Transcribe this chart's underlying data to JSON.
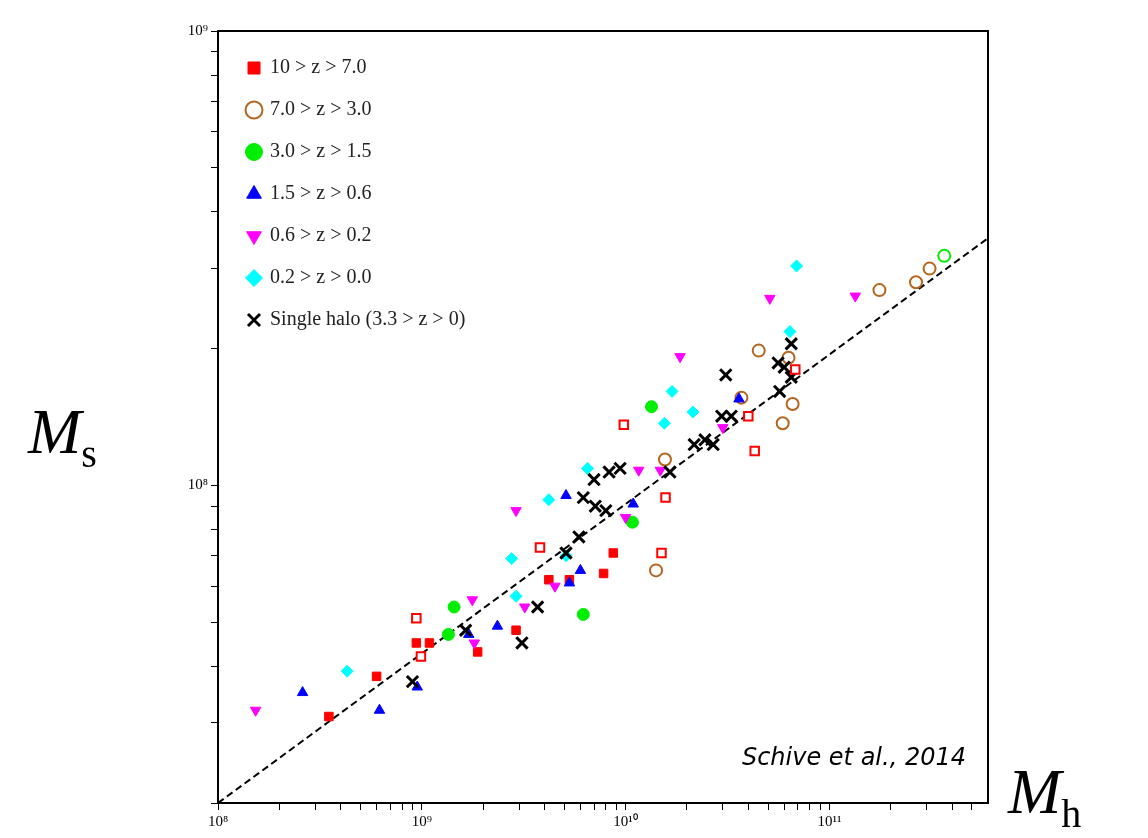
{
  "chart_data": {
    "type": "scatter",
    "xlabel": "M$_{h}$",
    "ylabel": "M$_{s}$",
    "log": "xy",
    "legend": "top left",
    "xlim": [
      100000000,
      600000000000
    ],
    "ylim": [
      20000000,
      1000000000
    ],
    "xticks": [
      {
        "value": 100000000,
        "label": "10⁸"
      },
      {
        "value": 200000000,
        "label": null
      },
      {
        "value": 300000000,
        "label": null
      },
      {
        "value": 400000000,
        "label": null
      },
      {
        "value": 500000000,
        "label": null
      },
      {
        "value": 600000000,
        "label": null
      },
      {
        "value": 700000000,
        "label": null
      },
      {
        "value": 800000000,
        "label": null
      },
      {
        "value": 900000000,
        "label": null
      },
      {
        "value": 1000000000,
        "label": "10⁹"
      },
      {
        "value": 2000000000,
        "label": null
      },
      {
        "value": 3000000000,
        "label": null
      },
      {
        "value": 4000000000,
        "label": null
      },
      {
        "value": 5000000000,
        "label": null
      },
      {
        "value": 6000000000,
        "label": null
      },
      {
        "value": 7000000000,
        "label": null
      },
      {
        "value": 8000000000,
        "label": null
      },
      {
        "value": 9000000000,
        "label": null
      },
      {
        "value": 10000000000,
        "label": "10¹⁰"
      },
      {
        "value": 20000000000,
        "label": null
      },
      {
        "value": 30000000000,
        "label": null
      },
      {
        "value": 40000000000,
        "label": null
      },
      {
        "value": 50000000000,
        "label": null
      },
      {
        "value": 60000000000,
        "label": null
      },
      {
        "value": 70000000000,
        "label": null
      },
      {
        "value": 80000000000,
        "label": null
      },
      {
        "value": 90000000000,
        "label": null
      },
      {
        "value": 100000000000,
        "label": "10¹¹"
      },
      {
        "value": 200000000000,
        "label": null
      },
      {
        "value": 300000000000,
        "label": null
      },
      {
        "value": 400000000000,
        "label": null
      },
      {
        "value": 500000000000,
        "label": null
      }
    ],
    "yticks": [
      {
        "value": 20000000,
        "label": null
      },
      {
        "value": 30000000,
        "label": null
      },
      {
        "value": 40000000,
        "label": null
      },
      {
        "value": 50000000,
        "label": null
      },
      {
        "value": 60000000,
        "label": null
      },
      {
        "value": 70000000,
        "label": null
      },
      {
        "value": 80000000,
        "label": null
      },
      {
        "value": 90000000,
        "label": null
      },
      {
        "value": 100000000,
        "label": "10⁸"
      },
      {
        "value": 200000000,
        "label": null
      },
      {
        "value": 300000000,
        "label": null
      },
      {
        "value": 400000000,
        "label": null
      },
      {
        "value": 500000000,
        "label": null
      },
      {
        "value": 600000000,
        "label": null
      },
      {
        "value": 700000000,
        "label": null
      },
      {
        "value": 800000000,
        "label": null
      },
      {
        "value": 900000000,
        "label": null
      },
      {
        "value": 1000000000,
        "label": "10⁹"
      }
    ],
    "annotations": [
      "Schive et al., 2014"
    ],
    "series": [
      {
        "type": "line",
        "color": "#000000",
        "line_style": "dashed",
        "marker": "none",
        "x": [
          100000000,
          600000000000
        ],
        "values": [
          20000000,
          350000000
        ]
      },
      {
        "name": "10 > z > 7.0",
        "color": "#ff0000",
        "marker": "square",
        "x": [
          350000000,
          600000000,
          940000000,
          1090000000,
          1880000000,
          2900000000,
          4200000000,
          5300000000,
          7800000000,
          8700000000
        ],
        "values": [
          31000000,
          38000000,
          45000000,
          45000000,
          43000000,
          48000000,
          62000000,
          62000000,
          64000000,
          71000000
        ]
      },
      {
        "name": "7.0 > z > 3.0",
        "color": "#b5651d",
        "marker": "circle-open",
        "x": [
          14100000000,
          15600000000,
          45000000000,
          63000000000,
          37000000000,
          66000000000,
          59000000000,
          176000000000,
          266000000000,
          310000000000
        ],
        "values": [
          65000000,
          114000000,
          198000000,
          191000000,
          156000000,
          151000000,
          137000000,
          269000000,
          280000000,
          300000000
        ]
      },
      {
        "name": "3.0 > z > 1.5",
        "color": "#00ee00",
        "marker": "circle",
        "x": [
          1440000000,
          1350000000,
          6200000000,
          10800000000,
          13400000000
        ],
        "values": [
          54000000,
          47000000,
          52000000,
          83000000,
          149000000
        ]
      },
      {
        "name": "1.5 > z > 0.6",
        "color": "#0000ff",
        "marker": "triangle",
        "x": [
          260000000,
          620000000,
          950000000,
          1700000000,
          2350000000,
          5300000000,
          6000000000,
          5100000000,
          10900000000,
          36000000000
        ],
        "values": [
          35000000,
          32000000,
          36000000,
          47000000,
          49000000,
          61000000,
          65000000,
          95000000,
          91000000,
          155000000
        ]
      },
      {
        "name": "0.6 > z > 0.2",
        "color": "#ff00ff",
        "marker": "triangle-down",
        "x": [
          153000000,
          1770000000,
          1810000000,
          3200000000,
          2900000000,
          4500000000,
          10000000000,
          11600000000,
          14800000000,
          30000000000,
          18500000000,
          51000000000,
          134000000000
        ],
        "values": [
          32000000,
          56000000,
          45000000,
          54000000,
          88000000,
          60000000,
          85000000,
          108000000,
          108000000,
          134000000,
          192000000,
          258000000,
          261000000
        ]
      },
      {
        "name": "0.2 > z > 0.0",
        "color": "#00ffff",
        "marker": "diamond",
        "x": [
          430000000,
          2900000000,
          2760000000,
          4200000000,
          5100000000,
          6500000000,
          15500000000,
          16900000000,
          21400000000,
          64000000000,
          69000000000
        ],
        "values": [
          39000000,
          57000000,
          69000000,
          93000000,
          70000000,
          109000000,
          137000000,
          161000000,
          145000000,
          218000000,
          304000000
        ]
      },
      {
        "name": "Single halo (3.3 > z > 0)",
        "color": "#000000",
        "marker": "cross",
        "x": [
          900000000,
          1640000000,
          3100000000,
          3700000000,
          5100000000,
          5900000000,
          6200000000,
          7100000000,
          8000000000,
          7000000000,
          8300000000,
          9400000000,
          16500000000,
          21700000000,
          26900000000,
          24500000000,
          29600000000,
          33000000000,
          31000000000,
          56000000000,
          57000000000,
          65000000000,
          65000000000,
          60000000000
        ],
        "values": [
          37000000,
          48000000,
          45000000,
          54000000,
          71000000,
          77000000,
          94000000,
          90000000,
          88000000,
          103000000,
          107000000,
          109000000,
          107000000,
          123000000,
          123000000,
          126000000,
          142000000,
          142000000,
          175000000,
          186000000,
          161000000,
          205000000,
          173000000,
          182000000
        ]
      },
      {
        "color": "#ff0000",
        "marker": "square-open",
        "x": [
          940000000,
          990000000,
          3800000000,
          15000000000,
          15700000000,
          9800000000,
          40000000000,
          43000000000,
          68000000000
        ],
        "values": [
          51000000,
          42000000,
          73000000,
          71000000,
          94000000,
          136000000,
          142000000,
          119000000,
          180000000
        ]
      },
      {
        "color": "#00ee00",
        "marker": "circle-open",
        "x": [
          366000000000
        ],
        "values": [
          320000000
        ]
      }
    ]
  }
}
